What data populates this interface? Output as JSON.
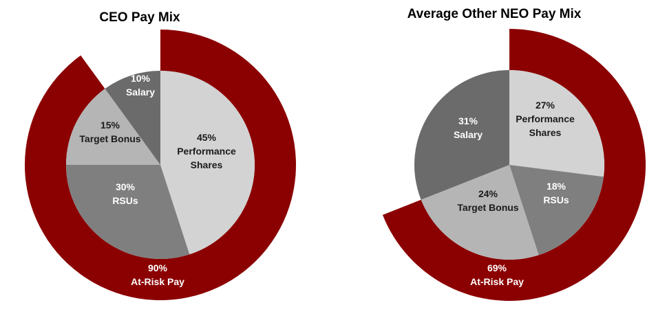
{
  "colors": {
    "at_risk": "#8b0000",
    "label_dark": "#1a1a1a",
    "label_light": "#ffffff"
  },
  "chart_data": [
    {
      "type": "pie",
      "title": "CEO Pay Mix",
      "slices": [
        {
          "pct_label": "45%",
          "name_lines": [
            "Performance",
            "Shares"
          ],
          "value": 45,
          "color": "#d3d3d3"
        },
        {
          "pct_label": "30%",
          "name_lines": [
            "RSUs"
          ],
          "value": 30,
          "color": "#7f7f7f"
        },
        {
          "pct_label": "15%",
          "name_lines": [
            "Target Bonus"
          ],
          "value": 15,
          "color": "#b5b5b5"
        },
        {
          "pct_label": "10%",
          "name_lines": [
            "Salary"
          ],
          "value": 10,
          "color": "#6b6b6b"
        }
      ],
      "outer_ring": {
        "pct_label": "90%",
        "name": "At-Risk Pay",
        "value": 90
      }
    },
    {
      "type": "pie",
      "title": "Average Other NEO Pay Mix",
      "slices": [
        {
          "pct_label": "27%",
          "name_lines": [
            "Performance",
            "Shares"
          ],
          "value": 27,
          "color": "#d3d3d3"
        },
        {
          "pct_label": "18%",
          "name_lines": [
            "RSUs"
          ],
          "value": 18,
          "color": "#7f7f7f"
        },
        {
          "pct_label": "24%",
          "name_lines": [
            "Target Bonus"
          ],
          "value": 24,
          "color": "#b5b5b5"
        },
        {
          "pct_label": "31%",
          "name_lines": [
            "Salary"
          ],
          "value": 31,
          "color": "#6b6b6b"
        }
      ],
      "outer_ring": {
        "pct_label": "69%",
        "name": "At-Risk Pay",
        "value": 69
      }
    }
  ]
}
